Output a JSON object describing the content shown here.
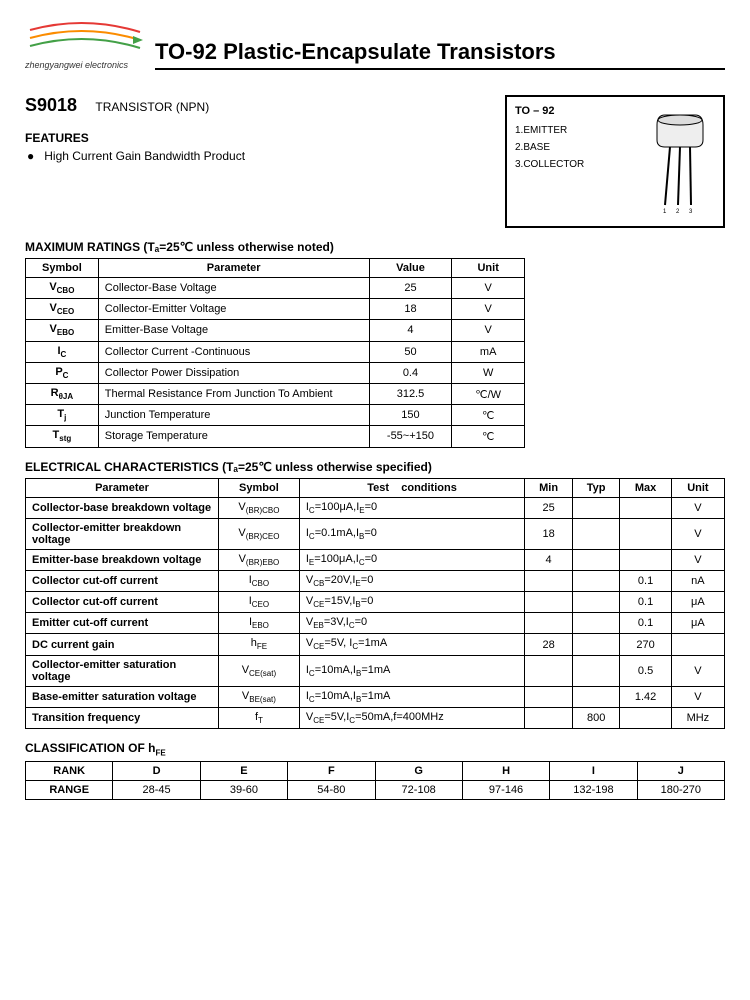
{
  "header": {
    "logo_text": "zhengyangwei electronics",
    "title": "TO-92 Plastic-Encapsulate Transistors"
  },
  "part": {
    "number": "S9018",
    "type": "TRANSISTOR (NPN)"
  },
  "features": {
    "heading": "FEATURES",
    "item1": "High Current Gain Bandwidth Product"
  },
  "package": {
    "title": "TO – 92",
    "pin1": "1.EMITTER",
    "pin2": "2.BASE",
    "pin3": "3.COLLECTOR"
  },
  "ratings": {
    "heading": "MAXIMUM RATINGS (Tₐ=25℃ unless otherwise noted)",
    "h_symbol": "Symbol",
    "h_param": "Parameter",
    "h_value": "Value",
    "h_unit": "Unit",
    "rows": [
      {
        "sym": "V_CBO",
        "symHtml": "V<sub>CBO</sub>",
        "param": "Collector-Base Voltage",
        "val": "25",
        "unit": "V"
      },
      {
        "sym": "V_CEO",
        "symHtml": "V<sub>CEO</sub>",
        "param": "Collector-Emitter Voltage",
        "val": "18",
        "unit": "V"
      },
      {
        "sym": "V_EBO",
        "symHtml": "V<sub>EBO</sub>",
        "param": "Emitter-Base Voltage",
        "val": "4",
        "unit": "V"
      },
      {
        "sym": "I_C",
        "symHtml": "I<sub>C</sub>",
        "param": "Collector Current -Continuous",
        "val": "50",
        "unit": "mA"
      },
      {
        "sym": "P_C",
        "symHtml": "P<sub>C</sub>",
        "param": "Collector Power Dissipation",
        "val": "0.4",
        "unit": "W"
      },
      {
        "sym": "R_thJA",
        "symHtml": "R<sub>θJA</sub>",
        "param": "Thermal Resistance From Junction To Ambient",
        "val": "312.5",
        "unit": "℃/W"
      },
      {
        "sym": "T_j",
        "symHtml": "T<sub>j</sub>",
        "param": "Junction Temperature",
        "val": "150",
        "unit": "℃"
      },
      {
        "sym": "T_stg",
        "symHtml": "T<sub>stg</sub>",
        "param": "Storage Temperature",
        "val": "-55~+150",
        "unit": "℃"
      }
    ]
  },
  "elec": {
    "heading": "ELECTRICAL CHARACTERISTICS (Tₐ=25℃ unless otherwise specified)",
    "h_param": "Parameter",
    "h_symbol": "Symbol",
    "h_test": "Test    conditions",
    "h_min": "Min",
    "h_typ": "Typ",
    "h_max": "Max",
    "h_unit": "Unit",
    "rows": [
      {
        "param": "Collector-base breakdown voltage",
        "symHtml": "V<sub>(BR)CBO</sub>",
        "test": "I<sub>C</sub>=100μA,I<sub>E</sub>=0",
        "min": "25",
        "typ": "",
        "max": "",
        "unit": "V"
      },
      {
        "param": "Collector-emitter breakdown voltage",
        "symHtml": "V<sub>(BR)CEO</sub>",
        "test": "I<sub>C</sub>=0.1mA,I<sub>B</sub>=0",
        "min": "18",
        "typ": "",
        "max": "",
        "unit": "V"
      },
      {
        "param": "Emitter-base breakdown voltage",
        "symHtml": "V<sub>(BR)EBO</sub>",
        "test": "I<sub>E</sub>=100μA,I<sub>C</sub>=0",
        "min": "4",
        "typ": "",
        "max": "",
        "unit": "V"
      },
      {
        "param": "Collector cut-off current",
        "symHtml": "I<sub>CBO</sub>",
        "test": "V<sub>CB</sub>=20V,I<sub>E</sub>=0",
        "min": "",
        "typ": "",
        "max": "0.1",
        "unit": "nA"
      },
      {
        "param": "Collector cut-off current",
        "symHtml": "I<sub>CEO</sub>",
        "test": "V<sub>CE</sub>=15V,I<sub>B</sub>=0",
        "min": "",
        "typ": "",
        "max": "0.1",
        "unit": "μA"
      },
      {
        "param": "Emitter cut-off current",
        "symHtml": "I<sub>EBO</sub>",
        "test": "V<sub>EB</sub>=3V,I<sub>C</sub>=0",
        "min": "",
        "typ": "",
        "max": "0.1",
        "unit": "μA"
      },
      {
        "param": "DC current gain",
        "symHtml": "h<sub>FE</sub>",
        "test": "V<sub>CE</sub>=5V, I<sub>C</sub>=1mA",
        "min": "28",
        "typ": "",
        "max": "270",
        "unit": ""
      },
      {
        "param": "Collector-emitter saturation voltage",
        "symHtml": "V<sub>CE(sat)</sub>",
        "test": "I<sub>C</sub>=10mA,I<sub>B</sub>=1mA",
        "min": "",
        "typ": "",
        "max": "0.5",
        "unit": "V"
      },
      {
        "param": "Base-emitter saturation voltage",
        "symHtml": "V<sub>BE(sat)</sub>",
        "test": "I<sub>C</sub>=10mA,I<sub>B</sub>=1mA",
        "min": "",
        "typ": "",
        "max": "1.42",
        "unit": "V"
      },
      {
        "param": "Transition frequency",
        "symHtml": "f<sub>T</sub>",
        "test": "V<sub>CE</sub>=5V,I<sub>C</sub>=50mA,f=400MHz",
        "min": "",
        "typ": "800",
        "max": "",
        "unit": "MHz"
      }
    ]
  },
  "hfe": {
    "heading": "CLASSIFICATION OF h_FE",
    "headingHtml": "CLASSIFICATION OF h<sub>FE</sub>",
    "h_rank": "RANK",
    "h_range": "RANGE",
    "cols": [
      "D",
      "E",
      "F",
      "G",
      "H",
      "I",
      "J"
    ],
    "vals": [
      "28-45",
      "39-60",
      "54-80",
      "72-108",
      "97-146",
      "132-198",
      "180-270"
    ]
  }
}
